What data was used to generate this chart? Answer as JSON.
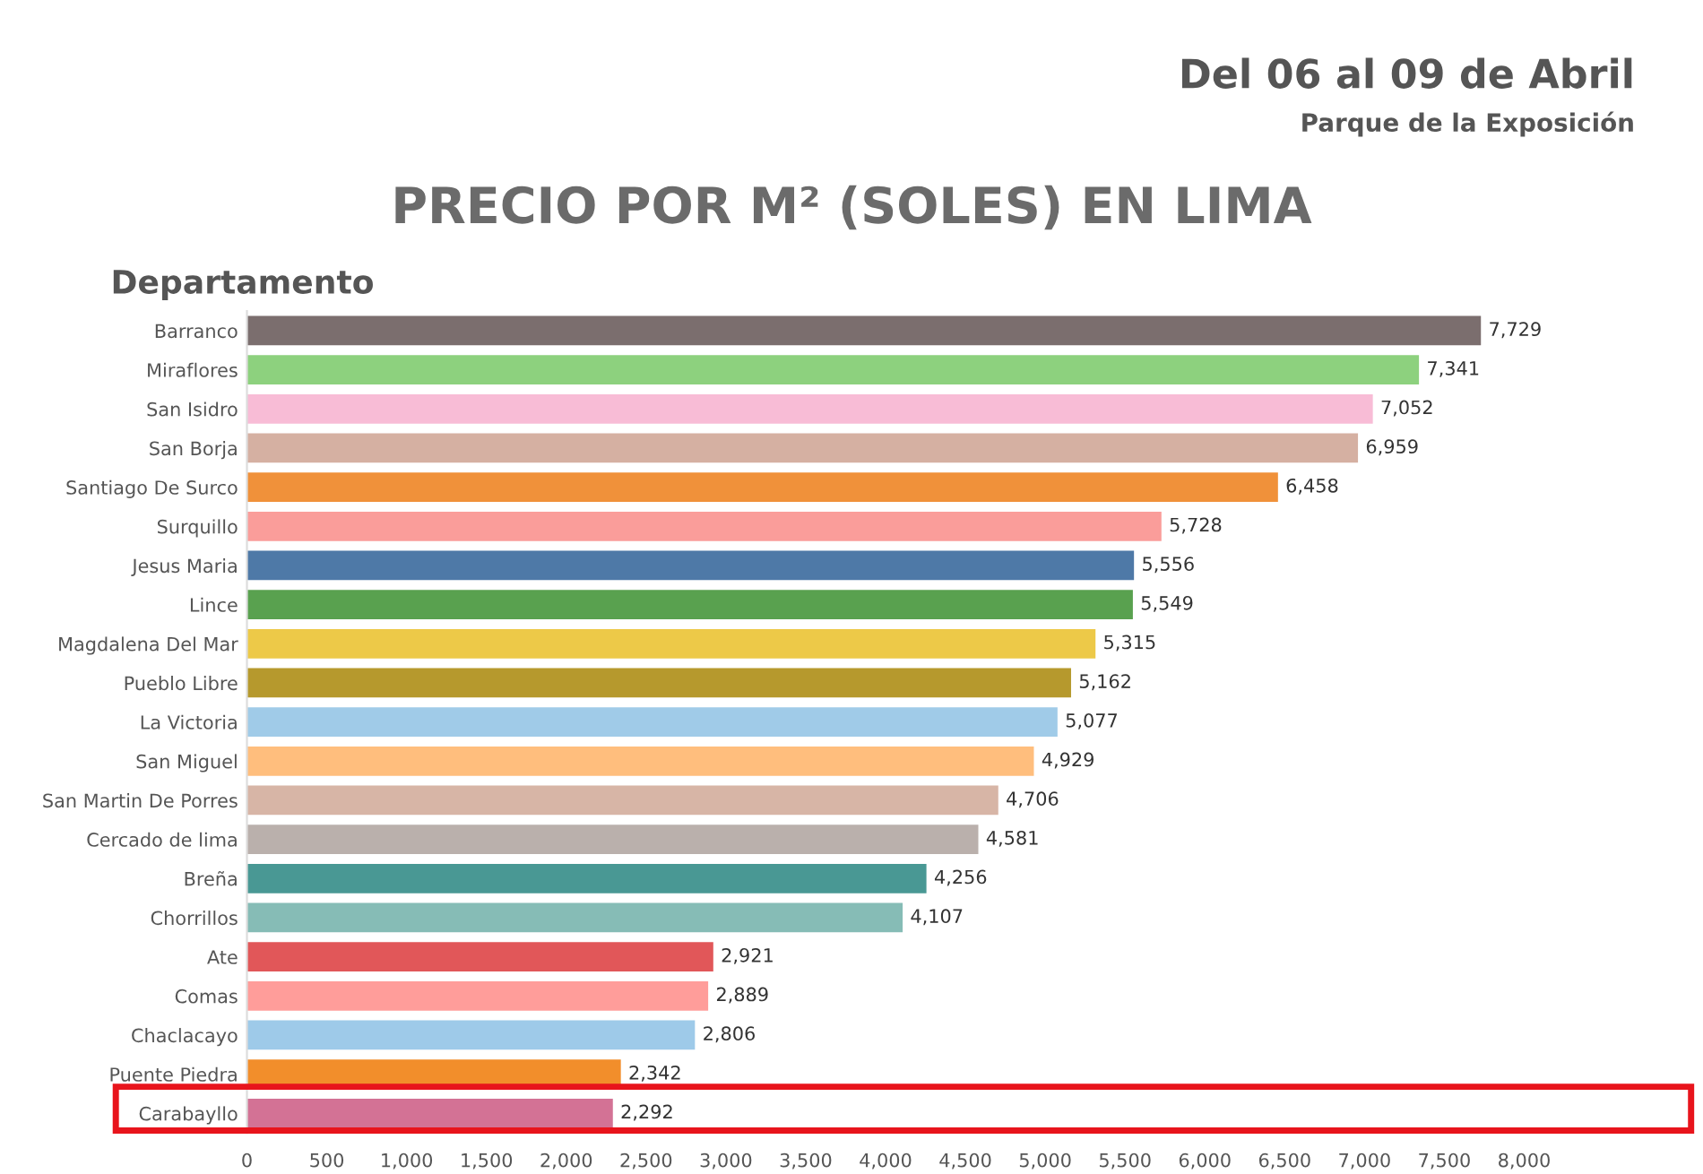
{
  "chart_data": {
    "type": "bar",
    "orientation": "horizontal",
    "title": "PRECIO POR M² (SOLES) EN LIMA",
    "ylabel": "Departamento",
    "annotations": [
      "Del 06 al 09 de Abril",
      "Parque de la Exposición"
    ],
    "categories": [
      "Barranco",
      "Miraflores",
      "San Isidro",
      "San Borja",
      "Santiago De Surco",
      "Surquillo",
      "Jesus Maria",
      "Lince",
      "Magdalena Del Mar",
      "Pueblo Libre",
      "La Victoria",
      "San Miguel",
      "San Martin De Porres",
      "Cercado de lima",
      "Breña",
      "Chorrillos",
      "Ate",
      "Comas",
      "Chaclacayo",
      "Puente Piedra",
      "Carabayllo"
    ],
    "values": [
      7729,
      7341,
      7052,
      6959,
      6458,
      5728,
      5556,
      5549,
      5315,
      5162,
      5077,
      4929,
      4706,
      4581,
      4256,
      4107,
      2921,
      2889,
      2806,
      2342,
      2292
    ],
    "colors": [
      "#7b6e6e",
      "#8dd17e",
      "#f8bcd6",
      "#d5b0a2",
      "#f0913a",
      "#fa9d9a",
      "#4e79a7",
      "#59a14f",
      "#edc948",
      "#b6992d",
      "#a0cbe8",
      "#ffbe7d",
      "#d7b5a6",
      "#bab0ac",
      "#499894",
      "#86bcb6",
      "#e15759",
      "#ff9d9a",
      "#9ecae9",
      "#f28e2b",
      "#d37295"
    ],
    "value_labels": [
      "7,729",
      "7,341",
      "7,052",
      "6,959",
      "6,458",
      "5,728",
      "5,556",
      "5,549",
      "5,315",
      "5,162",
      "5,077",
      "4,929",
      "4,706",
      "4,581",
      "4,256",
      "4,107",
      "2,921",
      "2,889",
      "2,806",
      "2,342",
      "2,292"
    ],
    "xlim": [
      0,
      8000
    ],
    "xticks": [
      {
        "value": 0,
        "label": "0"
      },
      {
        "value": 500,
        "label": "500"
      },
      {
        "value": 1000,
        "label": "1,000"
      },
      {
        "value": 1500,
        "label": "1,500"
      },
      {
        "value": 2000,
        "label": "2,000"
      },
      {
        "value": 2500,
        "label": "2,500"
      },
      {
        "value": 3000,
        "label": "3,000"
      },
      {
        "value": 3500,
        "label": "3,500"
      },
      {
        "value": 4000,
        "label": "4,000"
      },
      {
        "value": 4500,
        "label": "4,500"
      },
      {
        "value": 5000,
        "label": "5,000"
      },
      {
        "value": 5500,
        "label": "5,500"
      },
      {
        "value": 6000,
        "label": "6,000"
      },
      {
        "value": 6500,
        "label": "6,500"
      },
      {
        "value": 7000,
        "label": "7,000"
      },
      {
        "value": 7500,
        "label": "7,500"
      },
      {
        "value": 8000,
        "label": "8,000"
      }
    ],
    "grid": false,
    "legend": false
  }
}
